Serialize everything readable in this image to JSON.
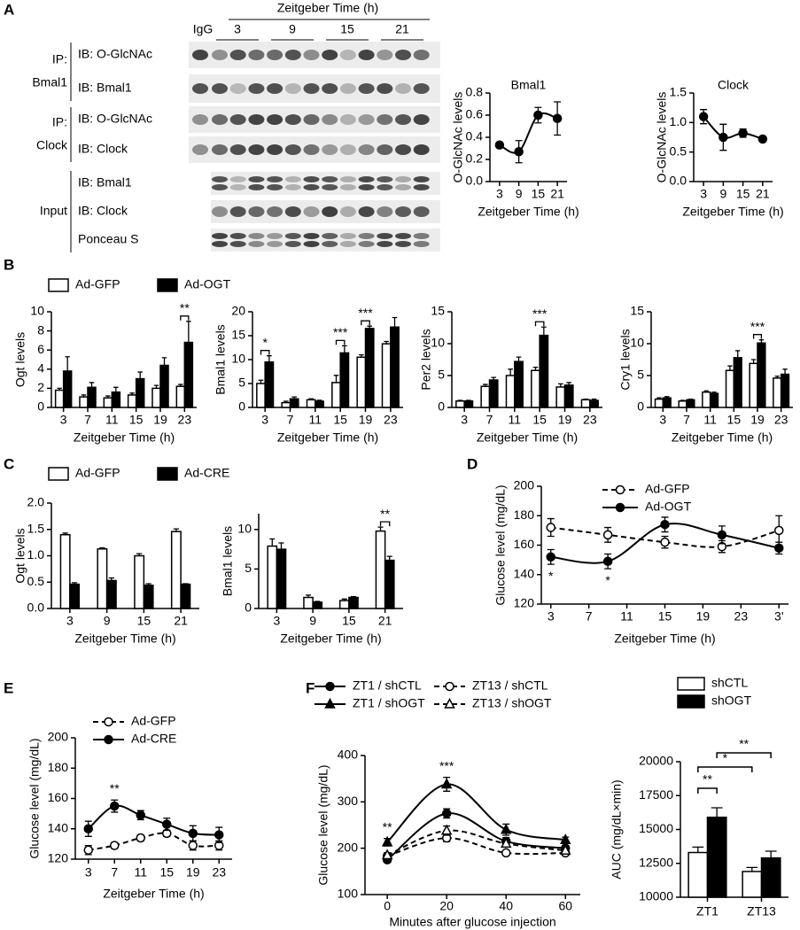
{
  "panels": [
    "A",
    "B",
    "C",
    "D",
    "E",
    "F"
  ],
  "blot": {
    "title": "Zeitgeber Time (h)",
    "igg": "IgG",
    "times": [
      "3",
      "9",
      "15",
      "21"
    ],
    "groups": [
      {
        "ip": [
          "IP:",
          "Bmal1"
        ],
        "rows": [
          "IB: O-GlcNAc",
          "IB: Bmal1"
        ]
      },
      {
        "ip": [
          "IP:",
          "Clock"
        ],
        "rows": [
          "IB: O-GlcNAc",
          "IB: Clock"
        ]
      },
      {
        "ip": [
          "Input"
        ],
        "rows": [
          "IB: Bmal1",
          "IB: Clock",
          "Ponceau S"
        ]
      }
    ]
  },
  "chart_data": [
    {
      "type": "line",
      "title": "Bmal1",
      "ylabel": "O-GlcNAc levels",
      "xlabel": "Zeitgeber Time (h)",
      "x": [
        3,
        9,
        15,
        21
      ],
      "xlim": [
        0,
        24
      ],
      "xticks": [
        3,
        9,
        15,
        21
      ],
      "ylim": [
        0,
        0.8
      ],
      "yticks": [
        {
          "value": 0,
          "label": "0.0"
        },
        0.2,
        0.4,
        0.6,
        0.8
      ],
      "series": [
        {
          "color": "#000000",
          "marker": "circle",
          "fill": "filled",
          "dash": false,
          "values": [
            0.33,
            0.27,
            0.6,
            0.57
          ],
          "errors": [
            0.02,
            0.1,
            0.07,
            0.15
          ]
        }
      ]
    },
    {
      "type": "line",
      "title": "Clock",
      "ylabel": "O-GlcNAc levels",
      "xlabel": "Zeitgeber Time (h)",
      "x": [
        3,
        9,
        15,
        21
      ],
      "xlim": [
        0,
        24
      ],
      "xticks": [
        3,
        9,
        15,
        21
      ],
      "ylim": [
        0,
        1.5
      ],
      "yticks": [
        {
          "value": 0,
          "label": "0.0"
        },
        0.5,
        {
          "value": 1,
          "label": "1.0"
        },
        1.5
      ],
      "series": [
        {
          "color": "#000000",
          "marker": "circle",
          "fill": "filled",
          "dash": false,
          "values": [
            1.1,
            0.75,
            0.82,
            0.72
          ],
          "errors": [
            0.12,
            0.22,
            0.07,
            0.03
          ]
        }
      ]
    },
    {
      "type": "bar",
      "ylabel": "Ogt levels",
      "xlabel": "Zeitgeber Time (h)",
      "categories": [
        "3",
        "7",
        "11",
        "15",
        "19",
        "23"
      ],
      "ylim": [
        0,
        10
      ],
      "yticks": [
        0,
        2,
        4,
        6,
        8,
        10
      ],
      "series": [
        {
          "name": "Ad-GFP",
          "color": "#ffffff",
          "edge": "#000000",
          "values": [
            1.8,
            1.1,
            1.0,
            1.3,
            2.0,
            2.2
          ],
          "errors": [
            0.2,
            0.2,
            0.2,
            0.2,
            0.3,
            0.2
          ]
        },
        {
          "name": "Ad-OGT",
          "color": "#000000",
          "edge": "#000000",
          "values": [
            3.8,
            2.1,
            1.6,
            3.0,
            4.4,
            6.8
          ],
          "errors": [
            1.5,
            0.5,
            0.5,
            0.7,
            0.8,
            2.2
          ]
        }
      ],
      "annotations": [
        {
          "text": "**",
          "x": "23"
        }
      ]
    },
    {
      "type": "bar",
      "ylabel": "Bmal1 levels",
      "xlabel": "Zeitgeber Time (h)",
      "categories": [
        "3",
        "7",
        "11",
        "15",
        "19",
        "23"
      ],
      "ylim": [
        0,
        20
      ],
      "yticks": [
        0,
        5,
        10,
        15,
        20
      ],
      "series": [
        {
          "color": "#ffffff",
          "edge": "#000000",
          "values": [
            5,
            1,
            1.6,
            5.2,
            10.5,
            13.3
          ],
          "errors": [
            0.7,
            0.3,
            0.2,
            1.5,
            0.5,
            0.5
          ]
        },
        {
          "color": "#000000",
          "edge": "#000000",
          "values": [
            9.5,
            1.8,
            1.3,
            11.4,
            16.5,
            16.8
          ],
          "errors": [
            1.3,
            0.4,
            0.2,
            1.5,
            0.5,
            2
          ]
        }
      ],
      "annotations": [
        {
          "text": "*",
          "x": "3"
        },
        {
          "text": "***",
          "x": "15"
        },
        {
          "text": "***",
          "x": "19"
        }
      ]
    },
    {
      "type": "bar",
      "ylabel": "Per2 levels",
      "xlabel": "Zeitgeber Time (h)",
      "categories": [
        "3",
        "7",
        "11",
        "15",
        "19",
        "23"
      ],
      "ylim": [
        0,
        15
      ],
      "yticks": [
        0,
        5,
        10,
        15
      ],
      "series": [
        {
          "color": "#ffffff",
          "edge": "#000000",
          "values": [
            1,
            3.3,
            5,
            5.8,
            3.2,
            1.2
          ],
          "errors": [
            0.1,
            0.3,
            1,
            0.5,
            0.5,
            0.1
          ]
        },
        {
          "color": "#000000",
          "edge": "#000000",
          "values": [
            1,
            4.3,
            7.2,
            11.3,
            3.5,
            1.1
          ],
          "errors": [
            0.1,
            0.4,
            0.7,
            1.3,
            0.4,
            0.2
          ]
        }
      ],
      "annotations": [
        {
          "text": "***",
          "x": "15"
        }
      ]
    },
    {
      "type": "bar",
      "ylabel": "Cry1 levels",
      "xlabel": "Zeitgeber Time (h)",
      "categories": [
        "3",
        "7",
        "11",
        "15",
        "19",
        "23"
      ],
      "ylim": [
        0,
        15
      ],
      "yticks": [
        0,
        5,
        10,
        15
      ],
      "series": [
        {
          "color": "#ffffff",
          "edge": "#000000",
          "values": [
            1.3,
            1,
            2.4,
            5.8,
            6.9,
            4.6
          ],
          "errors": [
            0.2,
            0.1,
            0.2,
            0.7,
            0.6,
            0.3
          ]
        },
        {
          "color": "#000000",
          "edge": "#000000",
          "values": [
            1.5,
            1.2,
            2.2,
            7.8,
            10.1,
            5.2
          ],
          "errors": [
            0.2,
            0.1,
            0.2,
            1.1,
            0.5,
            0.8
          ]
        }
      ],
      "annotations": [
        {
          "text": "***",
          "x": "19"
        }
      ]
    },
    {
      "type": "bar",
      "ylabel": "Ogt levels",
      "xlabel": "Zeitgeber Time (h)",
      "categories": [
        "3",
        "9",
        "15",
        "21"
      ],
      "ylim": [
        0,
        2
      ],
      "yticks": [
        {
          "value": 0,
          "label": "0.0"
        },
        0.5,
        {
          "value": 1,
          "label": "1.0"
        },
        1.5,
        {
          "value": 2,
          "label": "2.0"
        }
      ],
      "series": [
        {
          "name": "Ad-GFP",
          "color": "#ffffff",
          "edge": "#000000",
          "values": [
            1.4,
            1.13,
            1.0,
            1.46
          ],
          "errors": [
            0.03,
            0.02,
            0.04,
            0.05
          ]
        },
        {
          "name": "Ad-CRE",
          "color": "#000000",
          "edge": "#000000",
          "values": [
            0.46,
            0.53,
            0.44,
            0.46
          ],
          "errors": [
            0.03,
            0.05,
            0.03,
            0.01
          ]
        }
      ]
    },
    {
      "type": "bar",
      "ylabel": "Bmal1 levels",
      "xlabel": "Zeitgeber Time (h)",
      "categories": [
        "3",
        "9",
        "15",
        "21"
      ],
      "ylim": [
        0,
        12
      ],
      "yticks": [
        0,
        5,
        10
      ],
      "series": [
        {
          "color": "#ffffff",
          "edge": "#000000",
          "values": [
            7.9,
            1.4,
            1.0,
            9.8
          ],
          "errors": [
            0.9,
            0.3,
            0.2,
            0.5
          ]
        },
        {
          "color": "#000000",
          "edge": "#000000",
          "values": [
            7.5,
            0.8,
            1.4,
            6.1
          ],
          "errors": [
            0.8,
            0.1,
            0.1,
            0.5
          ]
        }
      ],
      "annotations": [
        {
          "text": "**",
          "x": "21"
        }
      ]
    },
    {
      "type": "line",
      "ylabel": "Glucose level (mg/dL)",
      "xlabel": "Zeitgeber Time (h)",
      "x": [
        3,
        9,
        15,
        21,
        27
      ],
      "xlim": [
        2,
        28
      ],
      "xticks": [
        3,
        7,
        11,
        15,
        19,
        23,
        {
          "value": 27,
          "label": "3'"
        }
      ],
      "ylim": [
        120,
        200
      ],
      "yticks": [
        120,
        140,
        160,
        180,
        200
      ],
      "series": [
        {
          "name": "Ad-GFP",
          "color": "#000000",
          "marker": "circle",
          "fill": "open",
          "dash": true,
          "values": [
            172,
            167,
            162,
            159,
            170
          ],
          "errors": [
            6,
            5,
            4,
            4,
            10
          ]
        },
        {
          "name": "Ad-OGT",
          "color": "#000000",
          "marker": "circle",
          "fill": "filled",
          "dash": false,
          "values": [
            152,
            149,
            174,
            167,
            158
          ],
          "errors": [
            5,
            5,
            5,
            6,
            4
          ]
        }
      ],
      "annotations": [
        {
          "text": "*",
          "x": 3,
          "position": "below"
        },
        {
          "text": "*",
          "x": 9,
          "position": "below"
        }
      ]
    },
    {
      "type": "line",
      "ylabel": "Glucose level (mg/dL)",
      "xlabel": "Zeitgeber Time (h)",
      "categories": [
        "3",
        "7",
        "11",
        "15",
        "19",
        "23"
      ],
      "ylim": [
        120,
        200
      ],
      "yticks": [
        120,
        140,
        160,
        180,
        200
      ],
      "series": [
        {
          "name": "Ad-GFP",
          "color": "#000000",
          "marker": "circle",
          "fill": "open",
          "dash": true,
          "values": [
            126,
            129,
            134,
            137,
            129,
            129
          ],
          "errors": [
            3,
            2,
            2,
            2,
            3,
            3
          ]
        },
        {
          "name": "Ad-CRE",
          "color": "#000000",
          "marker": "circle",
          "fill": "filled",
          "dash": false,
          "values": [
            140,
            155,
            149,
            143,
            137,
            136
          ],
          "errors": [
            5,
            4,
            3,
            4,
            5,
            5
          ]
        }
      ],
      "annotations": [
        {
          "text": "**",
          "x": "7"
        }
      ]
    },
    {
      "type": "line",
      "ylabel": "Glucose level (mg/dL)",
      "xlabel": "Minutes after glucose injection",
      "x": [
        0,
        20,
        40,
        60
      ],
      "xlim": [
        -7.5,
        65
      ],
      "xticks": [
        0,
        20,
        40,
        60
      ],
      "ylim": [
        100,
        400
      ],
      "yticks": [
        100,
        200,
        300,
        400
      ],
      "series": [
        {
          "name": "ZT1 / shCTL",
          "color": "#000000",
          "marker": "circle",
          "fill": "filled",
          "dash": false,
          "values": [
            175,
            275,
            215,
            200
          ],
          "errors": [
            5,
            10,
            8,
            6
          ]
        },
        {
          "name": "ZT1 / shOGT",
          "color": "#000000",
          "marker": "triangle",
          "fill": "filled",
          "dash": false,
          "values": [
            213,
            338,
            240,
            218
          ],
          "errors": [
            8,
            15,
            12,
            6
          ]
        },
        {
          "name": "ZT13 / shCTL",
          "color": "#000000",
          "marker": "circle",
          "fill": "open",
          "dash": true,
          "values": [
            183,
            222,
            190,
            190
          ],
          "errors": [
            5,
            8,
            4,
            5
          ]
        },
        {
          "name": "ZT13 / shOGT",
          "color": "#000000",
          "marker": "triangle",
          "fill": "open",
          "dash": true,
          "values": [
            185,
            238,
            210,
            195
          ],
          "errors": [
            5,
            10,
            6,
            5
          ]
        }
      ],
      "annotations": [
        {
          "text": "**",
          "x": 0
        },
        {
          "text": "***",
          "x": 20
        }
      ]
    },
    {
      "type": "bar",
      "ylabel": "AUC (mg/dL×min)",
      "categories": [
        "ZT1",
        "ZT13"
      ],
      "ylim": [
        10000,
        20000
      ],
      "yticks": [
        10000,
        12500,
        15000,
        17500,
        20000
      ],
      "series": [
        {
          "name": "shCTL",
          "color": "#ffffff",
          "edge": "#000000",
          "values": [
            13300,
            11900
          ],
          "errors": [
            400,
            300
          ]
        },
        {
          "name": "shOGT",
          "color": "#000000",
          "edge": "#000000",
          "values": [
            15900,
            12900
          ],
          "errors": [
            700,
            500
          ]
        }
      ],
      "annotations": [
        {
          "text": "**"
        },
        {
          "text": "*"
        },
        {
          "text": "**"
        }
      ]
    }
  ]
}
